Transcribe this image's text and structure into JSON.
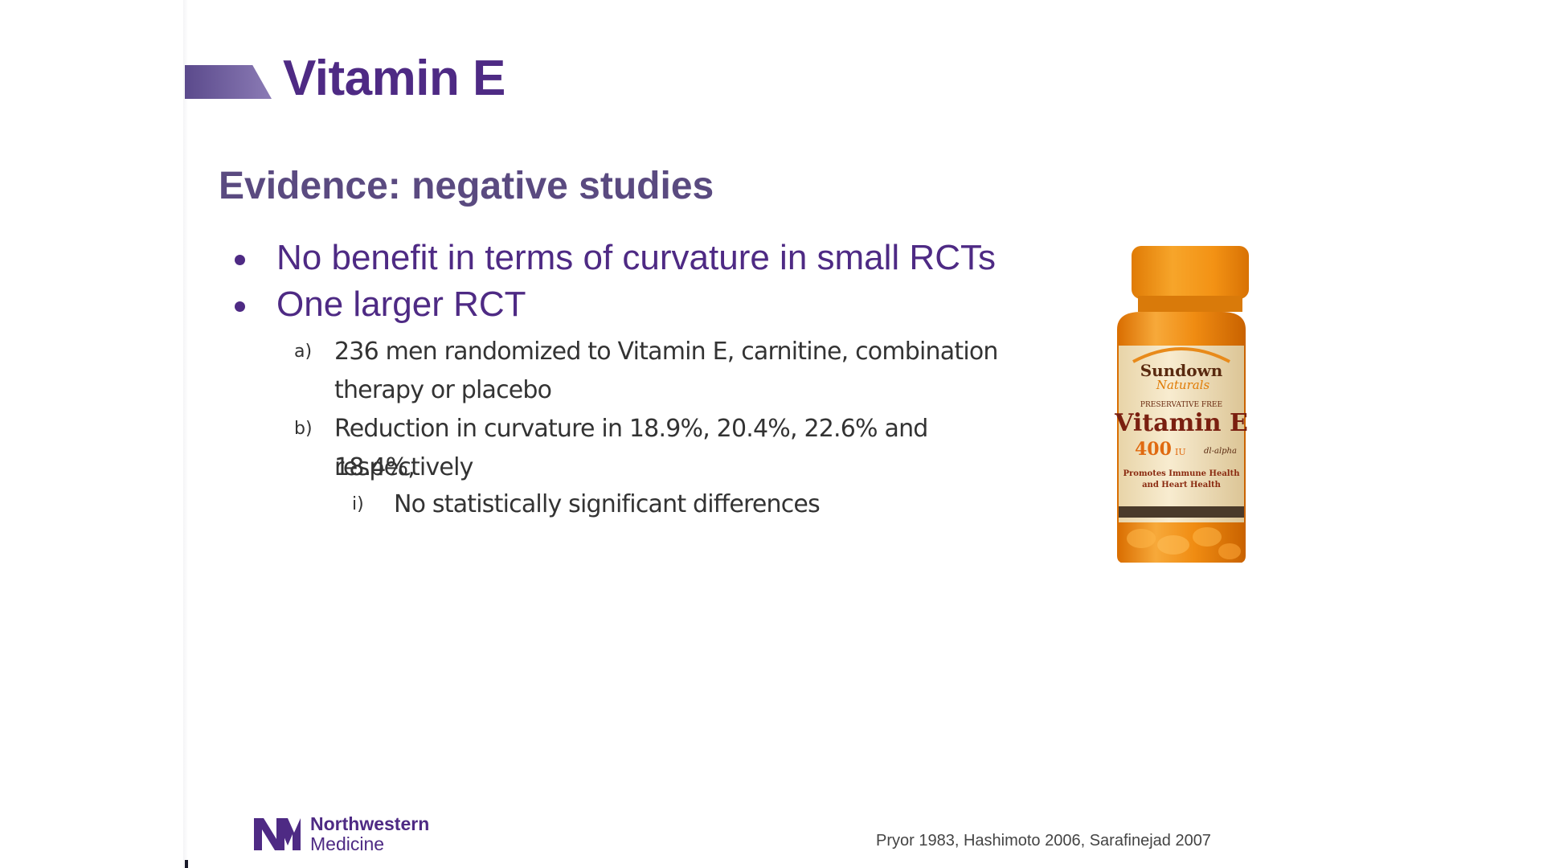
{
  "slide": {
    "title": "Vitamin E",
    "subtitle": "Evidence: negative studies",
    "bullets": [
      "No benefit in terms of curvature in small RCTs",
      "One larger RCT"
    ],
    "sub_items": [
      {
        "marker": "a)",
        "lines": [
          "236 men randomized to Vitamin E, carnitine, combination",
          "therapy or placebo"
        ]
      },
      {
        "marker": "b)",
        "lines": [
          "Reduction in curvature in 18.9%, 20.4%, 22.6% and 18.4%,",
          "respectively"
        ]
      }
    ],
    "sub_sub_items": [
      {
        "marker": "i)",
        "text": "No statistically significant differences"
      }
    ],
    "citation": "Pryor 1983, Hashimoto 2006, Sarafinejad 2007"
  },
  "bottle_label": {
    "brand_line1": "Sundown",
    "brand_line2": "Naturals",
    "preservative": "PRESERVATIVE FREE",
    "product": "Vitamin E",
    "dose": "400",
    "dose_unit": "IU",
    "form": "dl-alpha",
    "claim_line1": "Promotes Immune Health",
    "claim_line2": "and Heart Health"
  },
  "logo": {
    "line1": "Northwestern",
    "line2": "Medicine"
  },
  "colors": {
    "primary": "#4e2a84",
    "subtitle": "#5a4a80",
    "body": "#333333",
    "bottle_amber": "#e8840e",
    "bottle_cap": "#f29a1a"
  }
}
